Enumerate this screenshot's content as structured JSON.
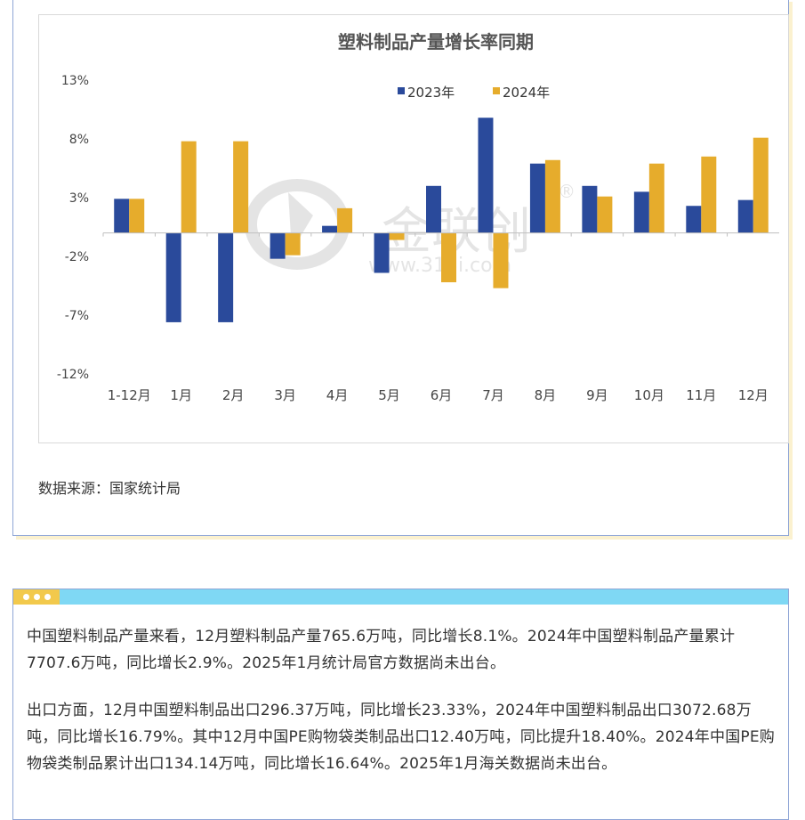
{
  "source_text": "数据来源：国家统计局",
  "watermark": {
    "brand": "金联创",
    "url": "www.315i.com",
    "mark": "®"
  },
  "colors": {
    "series_2023": "#2a4a9b",
    "series_2024": "#e6ac2c",
    "axis": "#bfbfbf"
  },
  "header_icon": "three-dots",
  "paragraphs": [
    "中国塑料制品产量来看，12月塑料制品产量765.6万吨，同比增长8.1%。2024年中国塑料制品产量累计7707.6万吨，同比增长2.9%。2025年1月统计局官方数据尚未出台。",
    "出口方面，12月中国塑料制品出口296.37万吨，同比增长23.33%，2024年中国塑料制品出口3072.68万吨，同比增长16.79%。其中12月中国PE购物袋类制品出口12.40万吨，同比提升18.40%。2024年中国PE购物袋类制品累计出口134.14万吨，同比增长16.64%。2025年1月海关数据尚未出台。"
  ],
  "chart_data": {
    "type": "bar",
    "title": "塑料制品产量增长率同期",
    "categories": [
      "1-12月",
      "1月",
      "2月",
      "3月",
      "4月",
      "5月",
      "6月",
      "7月",
      "8月",
      "9月",
      "10月",
      "11月",
      "12月"
    ],
    "series": [
      {
        "name": "2023年",
        "values": [
          2.9,
          -7.6,
          -7.6,
          -2.2,
          0.6,
          -3.4,
          4.0,
          9.8,
          5.9,
          4.0,
          3.5,
          2.3,
          2.8
        ]
      },
      {
        "name": "2024年",
        "values": [
          2.9,
          7.8,
          7.8,
          -1.9,
          2.1,
          -0.6,
          -4.2,
          -4.7,
          6.2,
          3.1,
          5.9,
          6.5,
          8.1
        ]
      }
    ],
    "ylim": [
      -12,
      13
    ],
    "yticks": [
      13,
      8,
      3,
      -2,
      -7,
      -12
    ],
    "ytick_labels": [
      "13%",
      "8%",
      "3%",
      "-2%",
      "-7%",
      "-12%"
    ],
    "legend_position": "top-center",
    "grid": false
  }
}
